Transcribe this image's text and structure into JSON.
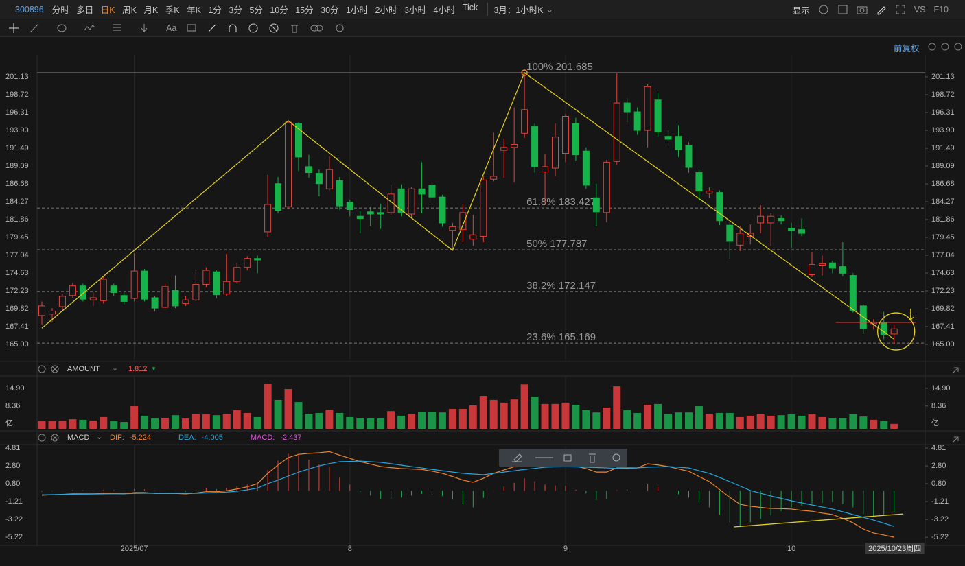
{
  "toolbar": {
    "code": "300896",
    "periods": [
      "分时",
      "多日",
      "日K",
      "周K",
      "月K",
      "季K",
      "年K",
      "1分",
      "3分",
      "5分",
      "10分",
      "15分",
      "30分",
      "1小时",
      "2小时",
      "3小时",
      "4小时",
      "Tick"
    ],
    "active_period": 2,
    "range_selector": "3月：1小时K",
    "display": "显示",
    "vs": "VS",
    "f10": "F10",
    "text_tool": "Aa",
    "adjust": "前复权"
  },
  "chart_data": [
    {
      "type": "candlestick",
      "up_color": "#e8413c",
      "down_color": "#17b24a",
      "ylim": [
        162.87,
        204.09
      ],
      "yticks": [
        {
          "value": 165,
          "label": "165.00"
        },
        167.41,
        169.82,
        172.23,
        174.63,
        177.04,
        179.45,
        181.86,
        184.27,
        186.68,
        189.09,
        191.49,
        {
          "value": 193.9,
          "label": "193.90"
        },
        196.31,
        198.72,
        201.13
      ],
      "xticks": [
        {
          "value": 9,
          "label": "2025/07"
        },
        {
          "value": 30,
          "label": "8"
        },
        {
          "value": 51,
          "label": "9"
        },
        {
          "value": 73,
          "label": "10"
        }
      ],
      "grid": "x",
      "crosshair_label": {
        "value": 83,
        "label": "2025/10/23周四"
      },
      "low_label": {
        "value": 165,
        "label": "165.00"
      },
      "marker_price": 167.96,
      "zigzag": [
        [
          0,
          167.2
        ],
        [
          24,
          195.2
        ],
        [
          40,
          177.7
        ],
        [
          47,
          201.685
        ],
        [
          83,
          165.7
        ]
      ],
      "fibonacci": [
        {
          "label": "100% 201.685",
          "value": 201.685
        },
        {
          "label": "61.8% 183.427",
          "value": 183.427
        },
        {
          "label": "50% 177.787",
          "value": 177.787
        },
        {
          "label": "38.2% 172.147",
          "value": 172.147
        },
        {
          "label": "23.6% 165.169",
          "value": 165.169
        }
      ],
      "candles": [
        [
          168.9,
          170.8,
          167.6,
          170.2
        ],
        [
          169.1,
          169.9,
          168.0,
          169.5
        ],
        [
          170.1,
          171.8,
          169.6,
          171.5
        ],
        [
          171.6,
          173.3,
          171.3,
          172.9
        ],
        [
          172.9,
          173.2,
          170.8,
          171.1
        ],
        [
          171.0,
          172.0,
          170.2,
          171.3
        ],
        [
          170.9,
          174.2,
          170.5,
          173.8
        ],
        [
          172.9,
          173.2,
          171.5,
          172.0
        ],
        [
          171.6,
          172.0,
          170.4,
          170.8
        ],
        [
          171.2,
          177.3,
          170.8,
          174.9
        ],
        [
          174.9,
          175.2,
          170.8,
          171.1
        ],
        [
          171.3,
          171.5,
          169.5,
          169.9
        ],
        [
          170.0,
          173.2,
          169.9,
          172.8
        ],
        [
          172.3,
          174.3,
          169.9,
          170.2
        ],
        [
          170.5,
          171.5,
          170.2,
          171.0
        ],
        [
          171.0,
          175.1,
          170.8,
          173.1
        ],
        [
          173.1,
          175.4,
          172.7,
          175.0
        ],
        [
          174.8,
          175.0,
          171.2,
          171.7
        ],
        [
          171.8,
          177.2,
          171.5,
          173.5
        ],
        [
          173.5,
          176.0,
          173.2,
          175.4
        ],
        [
          175.4,
          176.9,
          175.0,
          176.6
        ],
        [
          176.6,
          177.0,
          174.6,
          176.4
        ],
        [
          180.2,
          187.9,
          179.5,
          183.9
        ],
        [
          186.7,
          187.6,
          182.7,
          183.1
        ],
        [
          183.6,
          195.3,
          183.3,
          195.0
        ],
        [
          194.8,
          195.0,
          188.4,
          190.3
        ],
        [
          189.0,
          190.6,
          187.5,
          188.2
        ],
        [
          188.1,
          188.6,
          185.0,
          186.7
        ],
        [
          186.0,
          190.4,
          185.8,
          188.6
        ],
        [
          187.1,
          187.6,
          183.2,
          183.7
        ],
        [
          184.2,
          184.5,
          182.3,
          183.2
        ],
        [
          182.3,
          183.0,
          180.0,
          182.0
        ],
        [
          182.9,
          183.6,
          181.0,
          182.6
        ],
        [
          182.8,
          184.0,
          180.6,
          182.6
        ],
        [
          182.8,
          186.6,
          182.5,
          185.3
        ],
        [
          186.0,
          186.6,
          182.3,
          182.8
        ],
        [
          182.6,
          186.2,
          182.0,
          186.0
        ],
        [
          186.0,
          189.6,
          182.7,
          185.3
        ],
        [
          186.5,
          187.0,
          183.8,
          184.9
        ],
        [
          184.9,
          185.2,
          180.9,
          181.4
        ],
        [
          180.4,
          181.4,
          177.7,
          180.9
        ],
        [
          180.5,
          184.0,
          178.8,
          182.8
        ],
        [
          179.2,
          182.5,
          178.3,
          179.8
        ],
        [
          179.6,
          187.7,
          178.8,
          187.2
        ],
        [
          187.3,
          193.6,
          187.0,
          187.7
        ],
        [
          191.2,
          192.8,
          187.5,
          191.6
        ],
        [
          191.6,
          197.0,
          186.9,
          192.0
        ],
        [
          193.5,
          201.685,
          192.9,
          196.7
        ],
        [
          194.4,
          194.8,
          188.2,
          189.0
        ],
        [
          188.3,
          190.7,
          183.9,
          189.0
        ],
        [
          188.8,
          194.8,
          187.7,
          193.0
        ],
        [
          190.8,
          196.1,
          189.6,
          195.8
        ],
        [
          194.8,
          195.6,
          189.8,
          190.6
        ],
        [
          191.1,
          191.6,
          186.0,
          186.5
        ],
        [
          184.8,
          186.7,
          181.0,
          182.9
        ],
        [
          182.8,
          189.9,
          181.5,
          189.6
        ],
        [
          189.7,
          201.6,
          189.3,
          197.6
        ],
        [
          197.6,
          198.2,
          195.0,
          196.4
        ],
        [
          196.4,
          197.0,
          193.3,
          193.9
        ],
        [
          193.9,
          200.2,
          191.6,
          199.8
        ],
        [
          198.0,
          199.0,
          193.0,
          193.7
        ],
        [
          193.1,
          193.9,
          191.8,
          192.7
        ],
        [
          193.1,
          194.6,
          190.3,
          191.3
        ],
        [
          191.9,
          192.3,
          188.2,
          188.9
        ],
        [
          188.2,
          188.6,
          184.4,
          185.7
        ],
        [
          185.4,
          186.2,
          184.8,
          185.7
        ],
        [
          185.5,
          185.8,
          181.1,
          181.7
        ],
        [
          181.1,
          181.5,
          176.6,
          178.9
        ],
        [
          178.4,
          181.0,
          177.6,
          180.0
        ],
        [
          179.6,
          181.2,
          178.5,
          180.0
        ],
        [
          181.4,
          183.8,
          180.0,
          182.3
        ],
        [
          181.4,
          182.7,
          178.3,
          182.3
        ],
        [
          182.0,
          182.4,
          181.2,
          181.7
        ],
        [
          180.7,
          181.4,
          178.0,
          180.4
        ],
        [
          180.5,
          182.0,
          179.6,
          180.0
        ],
        [
          174.4,
          177.4,
          174.1,
          175.8
        ],
        [
          175.7,
          177.0,
          174.3,
          175.9
        ],
        [
          176.0,
          176.3,
          174.6,
          175.3
        ],
        [
          175.5,
          178.8,
          174.2,
          174.6
        ],
        [
          174.3,
          174.6,
          169.3,
          169.6
        ],
        [
          170.2,
          170.4,
          166.4,
          167.1
        ],
        [
          167.8,
          168.4,
          167.0,
          168.0
        ],
        [
          167.9,
          169.4,
          165.7,
          166.3
        ],
        [
          166.4,
          167.6,
          165.0,
          167.1
        ]
      ]
    },
    {
      "type": "bar",
      "name": "AMOUNT",
      "up_color": "#c8383a",
      "down_color": "#1c9447",
      "ylim": [
        0,
        19.4
      ],
      "yticks": [
        {
          "value": 8.36,
          "label": "8.36"
        },
        {
          "value": 14.9,
          "label": "14.90"
        }
      ],
      "unit": "亿",
      "values": [
        2.8,
        2.8,
        3.0,
        3.5,
        3.3,
        3.0,
        4.3,
        2.8,
        2.5,
        8.3,
        4.8,
        3.8,
        4.0,
        5.0,
        3.8,
        5.5,
        5.3,
        5.0,
        5.5,
        6.8,
        5.8,
        4.3,
        16.6,
        10.6,
        14.6,
        9.8,
        5.5,
        5.8,
        7.0,
        5.8,
        4.3,
        4.0,
        3.8,
        3.8,
        6.5,
        4.8,
        5.5,
        6.3,
        6.3,
        6.0,
        7.3,
        7.3,
        8.6,
        12.1,
        10.6,
        9.6,
        10.8,
        16.3,
        11.8,
        9.1,
        9.1,
        9.6,
        8.8,
        6.8,
        6.0,
        7.8,
        15.6,
        6.8,
        5.8,
        8.8,
        9.1,
        5.5,
        6.0,
        6.0,
        8.3,
        5.5,
        5.8,
        5.8,
        4.3,
        4.8,
        5.5,
        4.8,
        5.0,
        5.3,
        4.8,
        5.3,
        4.3,
        4.0,
        4.0,
        5.3,
        4.5,
        3.3,
        2.8,
        1.812
      ]
    },
    {
      "type": "macd",
      "name": "MACD",
      "up_color": "#e8413c",
      "down_color": "#17b24a",
      "ylim": [
        -6.14,
        5.04
      ],
      "yticks": [
        -5.22,
        -3.22,
        -1.21,
        {
          "value": 0.8,
          "label": "0.80"
        },
        {
          "value": 2.8,
          "label": "2.80"
        },
        4.81
      ],
      "divergence_line": [
        [
          67.4,
          -4.06
        ],
        [
          83.9,
          -2.6
        ]
      ],
      "line_color": "#e6d319",
      "series": [
        {
          "name": "DIF:",
          "color": "#f2872c",
          "values": [
            -0.5,
            -0.45,
            -0.4,
            -0.35,
            -0.35,
            -0.35,
            -0.3,
            -0.3,
            -0.35,
            -0.2,
            -0.2,
            -0.3,
            -0.3,
            -0.3,
            -0.35,
            -0.25,
            -0.1,
            -0.1,
            0.0,
            0.2,
            0.45,
            0.8,
            1.96,
            2.9,
            3.73,
            4.1,
            4.2,
            4.27,
            4.4,
            4.0,
            3.65,
            3.27,
            3.0,
            2.73,
            2.6,
            2.5,
            2.45,
            2.4,
            2.2,
            1.96,
            1.6,
            1.2,
            0.95,
            1.4,
            1.96,
            2.34,
            2.7,
            3.1,
            3.05,
            3.0,
            3.0,
            3.0,
            2.75,
            2.5,
            2.1,
            2.1,
            2.57,
            2.57,
            2.57,
            3.04,
            2.9,
            2.73,
            2.45,
            2.19,
            1.6,
            1.03,
            0.15,
            -0.74,
            -1.51,
            -1.74,
            -1.86,
            -1.98,
            -2.0,
            -2.05,
            -2.2,
            -2.3,
            -2.5,
            -2.67,
            -3.1,
            -3.6,
            -4.29,
            -4.75,
            -4.98,
            -5.224
          ]
        },
        {
          "name": "DEA:",
          "color": "#23a9e1",
          "values": [
            -0.45,
            -0.43,
            -0.41,
            -0.39,
            -0.38,
            -0.37,
            -0.35,
            -0.34,
            -0.34,
            -0.3,
            -0.28,
            -0.28,
            -0.29,
            -0.29,
            -0.3,
            -0.29,
            -0.24,
            -0.2,
            -0.15,
            -0.05,
            0.1,
            0.3,
            0.8,
            1.2,
            1.65,
            2.1,
            2.45,
            2.8,
            3.05,
            3.27,
            3.3,
            3.34,
            3.27,
            3.2,
            3.05,
            2.88,
            2.72,
            2.57,
            2.4,
            2.26,
            2.1,
            1.96,
            1.88,
            1.8,
            1.95,
            2.1,
            2.25,
            2.4,
            2.52,
            2.65,
            2.7,
            2.73,
            2.69,
            2.65,
            2.61,
            2.57,
            2.53,
            2.5,
            2.57,
            2.65,
            2.69,
            2.73,
            2.65,
            2.57,
            2.25,
            1.96,
            1.5,
            1.03,
            0.53,
            0.03,
            -0.28,
            -0.59,
            -0.86,
            -1.13,
            -1.36,
            -1.59,
            -1.82,
            -2.05,
            -2.36,
            -2.67,
            -2.98,
            -3.29,
            -3.65,
            -4.005
          ]
        },
        {
          "name": "MACD:",
          "color": "#d95fdb",
          "kind": "histogram",
          "values": [
            -0.1,
            -0.04,
            0.02,
            0.08,
            0.06,
            0.04,
            0.1,
            0.08,
            -0.02,
            0.2,
            0.16,
            -0.04,
            -0.02,
            -0.02,
            -0.1,
            0.08,
            0.28,
            0.2,
            0.3,
            0.5,
            0.7,
            1.0,
            2.32,
            3.4,
            4.16,
            4.0,
            3.5,
            2.94,
            2.7,
            1.46,
            0.7,
            -0.14,
            -0.54,
            -0.94,
            -0.9,
            -0.76,
            -0.54,
            -0.34,
            -0.4,
            -0.6,
            -1.0,
            -1.52,
            -1.86,
            -0.8,
            0.02,
            0.48,
            0.9,
            1.4,
            1.06,
            0.7,
            0.6,
            0.54,
            0.12,
            -0.3,
            -1.02,
            -0.94,
            0.08,
            0.14,
            0.0,
            0.78,
            0.42,
            0.0,
            -0.4,
            -0.76,
            -1.3,
            -1.86,
            -2.7,
            -3.54,
            -4.08,
            -3.54,
            -3.16,
            -2.78,
            -2.28,
            -1.84,
            -1.68,
            -1.42,
            -1.36,
            -1.24,
            -1.48,
            -1.86,
            -2.62,
            -2.92,
            -2.66,
            -2.437
          ]
        }
      ]
    }
  ]
}
